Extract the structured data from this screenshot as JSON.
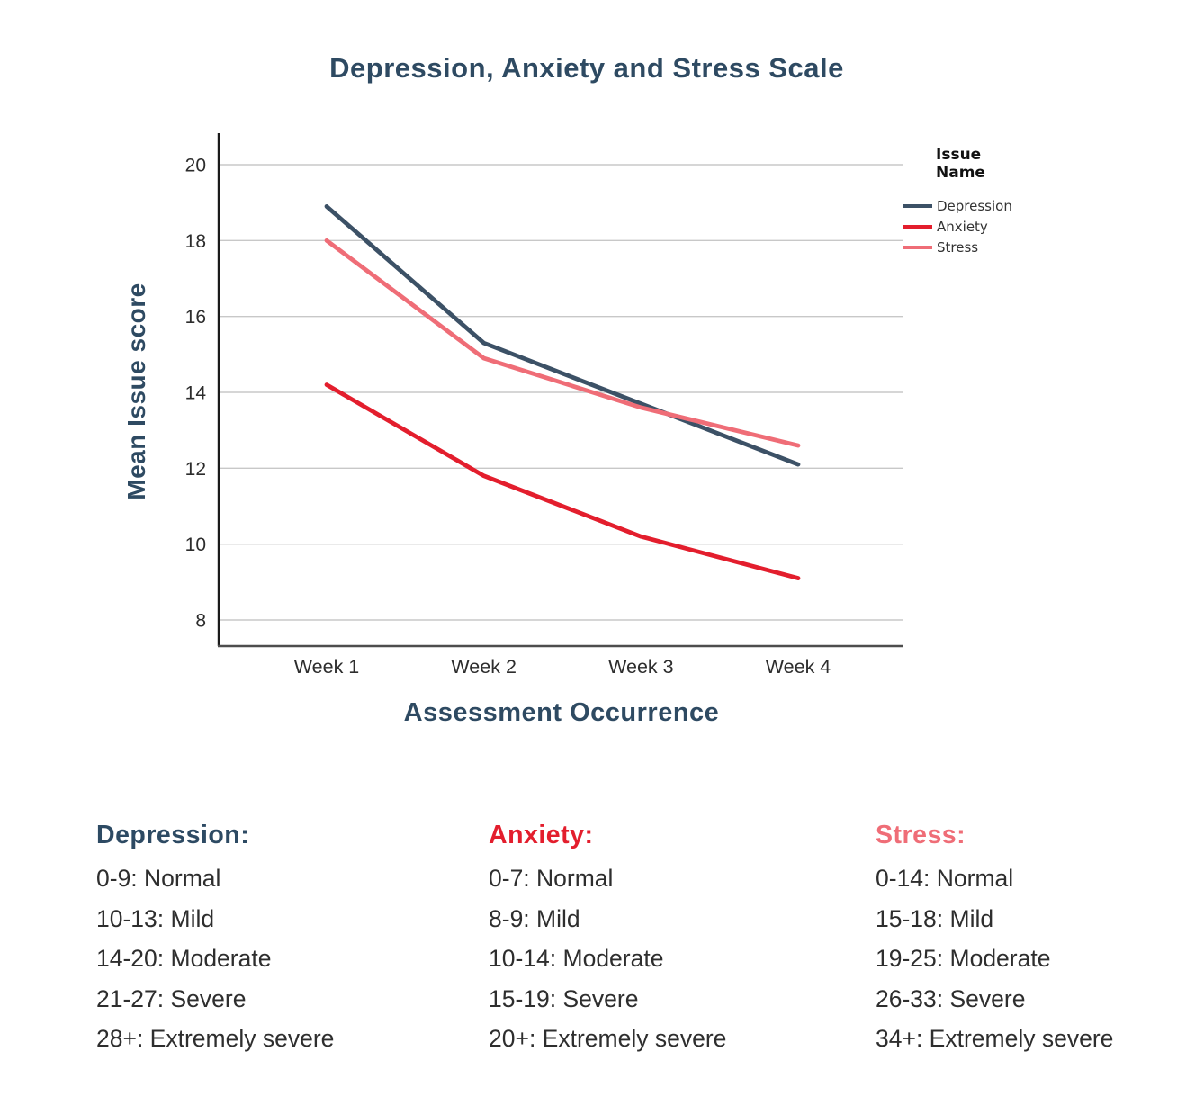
{
  "title": "Depression, Anxiety and Stress Scale",
  "chart_data": {
    "type": "line",
    "x": [
      "Week 1",
      "Week 2",
      "Week 3",
      "Week 4"
    ],
    "xlabel": "Assessment Occurrence",
    "ylabel": "Mean Issue score",
    "yticks": [
      8,
      10,
      12,
      14,
      16,
      18,
      20
    ],
    "ylim": [
      7.2,
      20.8
    ],
    "grid": true,
    "legend_title": "Issue Name",
    "legend_position": "right-top",
    "series": [
      {
        "name": "Depression",
        "color": "#3c5166",
        "values": [
          18.9,
          15.3,
          13.7,
          12.1
        ]
      },
      {
        "name": "Anxiety",
        "color": "#e31e2d",
        "values": [
          14.2,
          11.8,
          10.2,
          9.1
        ]
      },
      {
        "name": "Stress",
        "color": "#ef6d77",
        "values": [
          18.0,
          14.9,
          13.6,
          12.6
        ]
      }
    ]
  },
  "colors": {
    "heading_navy": "#2e4a62",
    "gridline": "#c8c8c8",
    "y_axis": "#1a1a1a",
    "x_axis": "#4d4d4d",
    "tick_text": "#2d2d2d"
  },
  "scales": [
    {
      "heading": "Depression:",
      "color": "#2d4a63",
      "items": [
        "0-9: Normal",
        "10-13: Mild",
        "14-20: Moderate",
        "21-27: Severe",
        "28+: Extremely severe"
      ]
    },
    {
      "heading": "Anxiety:",
      "color": "#e31e2d",
      "items": [
        "0-7: Normal",
        "8-9: Mild",
        "10-14: Moderate",
        "15-19: Severe",
        "20+: Extremely severe"
      ]
    },
    {
      "heading": "Stress:",
      "color": "#ef6d77",
      "items": [
        "0-14: Normal",
        "15-18: Mild",
        "19-25: Moderate",
        "26-33: Severe",
        "34+: Extremely severe"
      ]
    }
  ]
}
